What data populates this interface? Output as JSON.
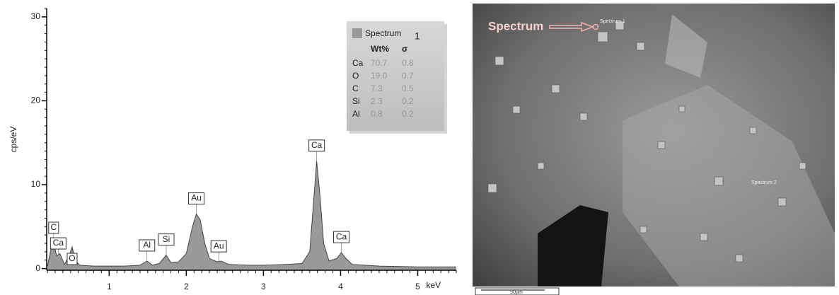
{
  "chart_data": {
    "type": "area",
    "y_label": "cps/eV",
    "x_unit": "keV",
    "x": [
      0.2,
      0.25,
      0.28,
      0.32,
      0.36,
      0.42,
      0.48,
      0.52,
      0.56,
      0.62,
      0.8,
      1.0,
      1.2,
      1.4,
      1.49,
      1.56,
      1.65,
      1.74,
      1.8,
      1.9,
      2.0,
      2.08,
      2.13,
      2.18,
      2.24,
      2.3,
      2.4,
      2.45,
      2.55,
      2.8,
      3.0,
      3.3,
      3.5,
      3.6,
      3.65,
      3.69,
      3.73,
      3.78,
      3.85,
      3.95,
      4.01,
      4.07,
      4.15,
      4.5,
      5.0,
      5.5
    ],
    "series": [
      {
        "name": "Spectrum",
        "color": "#9a9a9a",
        "values": [
          0.3,
          2.5,
          3.0,
          1.5,
          1.8,
          0.5,
          1.5,
          2.6,
          1.0,
          0.4,
          0.3,
          0.3,
          0.3,
          0.4,
          0.9,
          0.4,
          0.6,
          1.6,
          0.7,
          0.8,
          1.8,
          5.0,
          6.5,
          5.8,
          3.0,
          1.2,
          0.8,
          0.9,
          0.5,
          0.4,
          0.4,
          0.5,
          0.6,
          2.0,
          8.0,
          12.8,
          9.0,
          3.0,
          0.9,
          1.2,
          1.9,
          1.2,
          0.5,
          0.3,
          0.2,
          0.2
        ]
      }
    ],
    "xlim": [
      0.19,
      5.5
    ],
    "ylim": [
      -0.2,
      31
    ],
    "xticks": [
      1,
      2,
      3,
      4,
      5
    ],
    "yticks": [
      0,
      10,
      20,
      30
    ],
    "peaks": [
      {
        "label": "C",
        "x": 0.28
      },
      {
        "label": "Ca",
        "x": 0.34
      },
      {
        "label": "O",
        "x": 0.52
      },
      {
        "label": "Al",
        "x": 1.49
      },
      {
        "label": "Si",
        "x": 1.74
      },
      {
        "label": "Au",
        "x": 2.13
      },
      {
        "label": "Au",
        "x": 2.42
      },
      {
        "label": "Ca",
        "x": 3.69
      },
      {
        "label": "Ca",
        "x": 4.01
      }
    ],
    "legend_number": 1,
    "table": {
      "columns": [
        "Wt%",
        "σ"
      ],
      "rows": [
        [
          "Ca",
          "70.7",
          "0.8"
        ],
        [
          "O",
          "19.0",
          "0.7"
        ],
        [
          "C",
          "7.3",
          "0.5"
        ],
        [
          "Si",
          "2.3",
          "0.2"
        ],
        [
          "Al",
          "0.8",
          "0.2"
        ]
      ]
    }
  },
  "image": {
    "arrow_label": "Spectrum",
    "site_1": "Spectrum 1",
    "site_2": "Spectrum 2",
    "scale_bar": "50µm"
  }
}
